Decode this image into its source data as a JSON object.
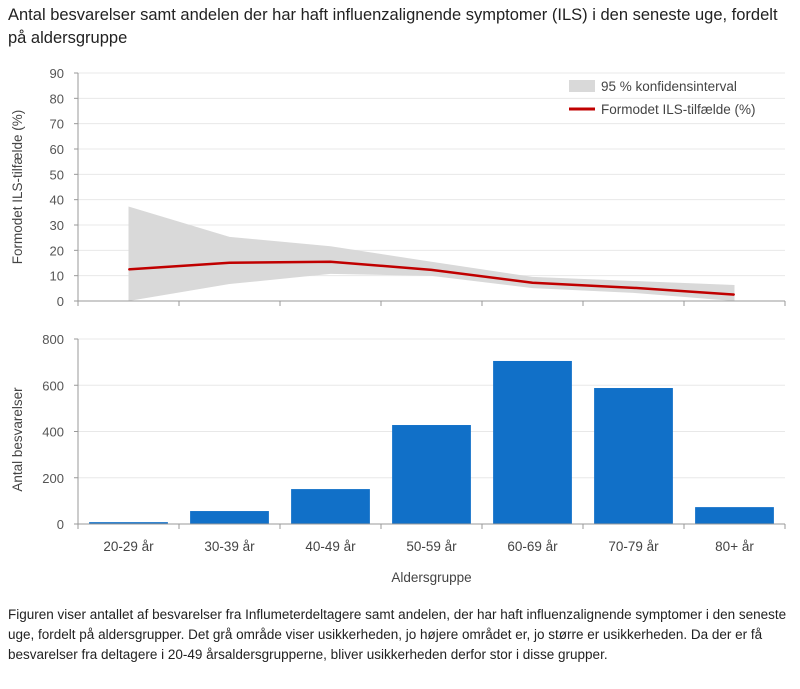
{
  "title": "Antal besvarelser samt andelen der har haft influenzalignende symptomer (ILS) i den seneste uge, fordelt på aldersgruppe",
  "caption": "Figuren viser antallet af besvarelser fra Influmeterdeltagere  samt andelen, der har haft influenzalignende symptomer i den seneste uge, fordelt på aldersgrupper. Det grå område viser usikkerheden,  jo højere området er, jo større er usikkerheden. Da der er få besvarelser fra deltagere i 20-49 årsaldersgrupperne, bliver usikkerheden derfor stor i disse grupper.",
  "colors": {
    "ci": "#d9d9d9",
    "line": "#c00000",
    "bar": "#1170c8"
  },
  "chart_data": [
    {
      "type": "line",
      "categories": [
        "20-29 år",
        "30-39 år",
        "40-49 år",
        "50-59 år",
        "60-69 år",
        "70-79 år",
        "80+ år"
      ],
      "ylabel": "Formodet ILS-tilfælde (%)",
      "ylim": [
        0,
        90
      ],
      "yticks": [
        0,
        10,
        20,
        30,
        40,
        50,
        60,
        70,
        80,
        90
      ],
      "grid": true,
      "legend_placement": "top-right",
      "series": [
        {
          "name": "Formodet ILS-tilfælde (%)",
          "values": [
            12.5,
            15.1,
            15.5,
            12.3,
            7.2,
            5.2,
            2.5
          ]
        }
      ],
      "band": {
        "name": "95 % konfidensinterval",
        "lower": [
          0,
          6.7,
          10.7,
          9.9,
          5.1,
          3.2,
          0
        ],
        "upper": [
          37.3,
          25.3,
          21.6,
          15.5,
          9.5,
          7.9,
          6.3
        ]
      }
    },
    {
      "type": "bar",
      "categories": [
        "20-29 år",
        "30-39 år",
        "40-49 år",
        "50-59 år",
        "60-69 år",
        "70-79 år",
        "80+ år"
      ],
      "values": [
        8,
        56,
        151,
        428,
        705,
        588,
        73
      ],
      "xlabel": "Aldersgruppe",
      "ylabel": "Antal besvarelser",
      "ylim": [
        0,
        800
      ],
      "yticks": [
        0,
        200,
        400,
        600,
        800
      ],
      "grid": true
    }
  ]
}
